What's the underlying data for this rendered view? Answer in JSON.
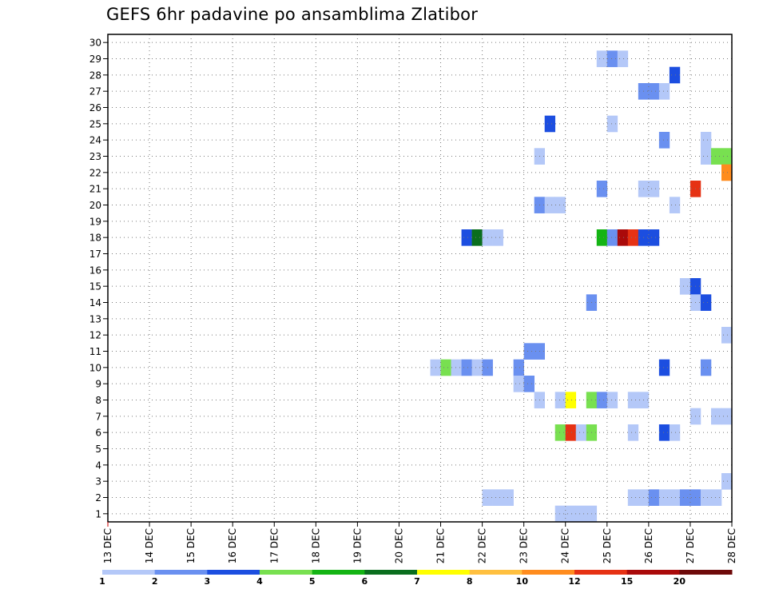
{
  "chart_data": {
    "type": "heatmap",
    "title": "GEFS 6hr padavine po ansamblima Zlatibor",
    "x_labels": [
      "13 DEC",
      "14 DEC",
      "15 DEC",
      "16 DEC",
      "17 DEC",
      "18 DEC",
      "19 DEC",
      "20 DEC",
      "21 DEC",
      "22 DEC",
      "23 DEC",
      "24 DEC",
      "25 DEC",
      "26 DEC",
      "27 DEC",
      "28 DEC"
    ],
    "y_labels": [
      "1",
      "2",
      "3",
      "4",
      "5",
      "6",
      "7",
      "8",
      "9",
      "10",
      "11",
      "12",
      "13",
      "14",
      "15",
      "16",
      "17",
      "18",
      "19",
      "20",
      "21",
      "22",
      "23",
      "24",
      "25",
      "26",
      "27",
      "28",
      "29",
      "30"
    ],
    "ylim": [
      0.5,
      30.5
    ],
    "time_step": "6hr",
    "colorbar": {
      "labels": [
        "1",
        "2",
        "3",
        "4",
        "5",
        "6",
        "7",
        "8",
        "10",
        "12",
        "15",
        "20"
      ],
      "colors": [
        "#b4c8f8",
        "#6a90f0",
        "#1c4ee0",
        "#78e050",
        "#14b414",
        "#0a6e1e",
        "#ffff00",
        "#ffc040",
        "#ff8c1e",
        "#e63214",
        "#aa0a0a",
        "#6e0a0a"
      ]
    },
    "cells": [
      {
        "member": 29,
        "day": 24.75,
        "level": 1
      },
      {
        "member": 29,
        "day": 25.0,
        "level": 2
      },
      {
        "member": 29,
        "day": 25.25,
        "level": 1
      },
      {
        "member": 28,
        "day": 26.5,
        "level": 3
      },
      {
        "member": 27,
        "day": 25.75,
        "level": 2
      },
      {
        "member": 27,
        "day": 26.0,
        "level": 2
      },
      {
        "member": 27,
        "day": 26.25,
        "level": 1
      },
      {
        "member": 25,
        "day": 23.5,
        "level": 3
      },
      {
        "member": 25,
        "day": 25.0,
        "level": 1
      },
      {
        "member": 24,
        "day": 26.25,
        "level": 2
      },
      {
        "member": 24,
        "day": 27.25,
        "level": 1
      },
      {
        "member": 23,
        "day": 23.25,
        "level": 1
      },
      {
        "member": 23,
        "day": 27.25,
        "level": 1
      },
      {
        "member": 23,
        "day": 27.5,
        "level": 4
      },
      {
        "member": 23,
        "day": 27.75,
        "level": 4
      },
      {
        "member": 22,
        "day": 27.75,
        "level": 9
      },
      {
        "member": 21,
        "day": 24.75,
        "level": 2
      },
      {
        "member": 21,
        "day": 25.75,
        "level": 1
      },
      {
        "member": 21,
        "day": 26.0,
        "level": 1
      },
      {
        "member": 21,
        "day": 27.0,
        "level": 10
      },
      {
        "member": 20,
        "day": 23.25,
        "level": 2
      },
      {
        "member": 20,
        "day": 23.5,
        "level": 1
      },
      {
        "member": 20,
        "day": 23.75,
        "level": 1
      },
      {
        "member": 20,
        "day": 26.5,
        "level": 1
      },
      {
        "member": 18,
        "day": 21.5,
        "level": 3
      },
      {
        "member": 18,
        "day": 21.75,
        "level": 6
      },
      {
        "member": 18,
        "day": 22.0,
        "level": 1
      },
      {
        "member": 18,
        "day": 22.25,
        "level": 1
      },
      {
        "member": 18,
        "day": 24.75,
        "level": 5
      },
      {
        "member": 18,
        "day": 25.0,
        "level": 2
      },
      {
        "member": 18,
        "day": 25.25,
        "level": 11
      },
      {
        "member": 18,
        "day": 25.5,
        "level": 10
      },
      {
        "member": 18,
        "day": 25.75,
        "level": 3
      },
      {
        "member": 18,
        "day": 26.0,
        "level": 3
      },
      {
        "member": 15,
        "day": 26.75,
        "level": 1
      },
      {
        "member": 15,
        "day": 27.0,
        "level": 3
      },
      {
        "member": 14,
        "day": 24.5,
        "level": 2
      },
      {
        "member": 14,
        "day": 27.0,
        "level": 1
      },
      {
        "member": 14,
        "day": 27.25,
        "level": 3
      },
      {
        "member": 12,
        "day": 27.75,
        "level": 1
      },
      {
        "member": 11,
        "day": 23.0,
        "level": 2
      },
      {
        "member": 11,
        "day": 23.25,
        "level": 2
      },
      {
        "member": 10,
        "day": 20.75,
        "level": 1
      },
      {
        "member": 10,
        "day": 21.0,
        "level": 4
      },
      {
        "member": 10,
        "day": 21.25,
        "level": 1
      },
      {
        "member": 10,
        "day": 21.5,
        "level": 2
      },
      {
        "member": 10,
        "day": 21.75,
        "level": 1
      },
      {
        "member": 10,
        "day": 22.0,
        "level": 2
      },
      {
        "member": 10,
        "day": 22.75,
        "level": 2
      },
      {
        "member": 10,
        "day": 26.25,
        "level": 3
      },
      {
        "member": 10,
        "day": 27.25,
        "level": 2
      },
      {
        "member": 9,
        "day": 22.75,
        "level": 1
      },
      {
        "member": 9,
        "day": 23.0,
        "level": 2
      },
      {
        "member": 8,
        "day": 23.25,
        "level": 1
      },
      {
        "member": 8,
        "day": 23.75,
        "level": 1
      },
      {
        "member": 8,
        "day": 24.0,
        "level": 7
      },
      {
        "member": 8,
        "day": 24.5,
        "level": 4
      },
      {
        "member": 8,
        "day": 24.75,
        "level": 2
      },
      {
        "member": 8,
        "day": 25.0,
        "level": 1
      },
      {
        "member": 8,
        "day": 25.5,
        "level": 1
      },
      {
        "member": 8,
        "day": 25.75,
        "level": 1
      },
      {
        "member": 7,
        "day": 27.0,
        "level": 1
      },
      {
        "member": 7,
        "day": 27.5,
        "level": 1
      },
      {
        "member": 7,
        "day": 27.75,
        "level": 1
      },
      {
        "member": 6,
        "day": 23.75,
        "level": 4
      },
      {
        "member": 6,
        "day": 24.0,
        "level": 10
      },
      {
        "member": 6,
        "day": 24.25,
        "level": 1
      },
      {
        "member": 6,
        "day": 24.5,
        "level": 4
      },
      {
        "member": 6,
        "day": 25.5,
        "level": 1
      },
      {
        "member": 6,
        "day": 26.25,
        "level": 3
      },
      {
        "member": 6,
        "day": 26.5,
        "level": 1
      },
      {
        "member": 3,
        "day": 27.75,
        "level": 1
      },
      {
        "member": 2,
        "day": 22.0,
        "level": 1
      },
      {
        "member": 2,
        "day": 22.25,
        "level": 1
      },
      {
        "member": 2,
        "day": 22.5,
        "level": 1
      },
      {
        "member": 2,
        "day": 25.5,
        "level": 1
      },
      {
        "member": 2,
        "day": 25.75,
        "level": 1
      },
      {
        "member": 2,
        "day": 26.0,
        "level": 2
      },
      {
        "member": 2,
        "day": 26.25,
        "level": 1
      },
      {
        "member": 2,
        "day": 26.5,
        "level": 1
      },
      {
        "member": 2,
        "day": 26.75,
        "level": 2
      },
      {
        "member": 2,
        "day": 27.0,
        "level": 2
      },
      {
        "member": 2,
        "day": 27.25,
        "level": 1
      },
      {
        "member": 2,
        "day": 27.5,
        "level": 1
      },
      {
        "member": 1,
        "day": 23.75,
        "level": 1
      },
      {
        "member": 1,
        "day": 24.0,
        "level": 1
      },
      {
        "member": 1,
        "day": 24.25,
        "level": 1
      },
      {
        "member": 1,
        "day": 24.5,
        "level": 1
      }
    ]
  }
}
